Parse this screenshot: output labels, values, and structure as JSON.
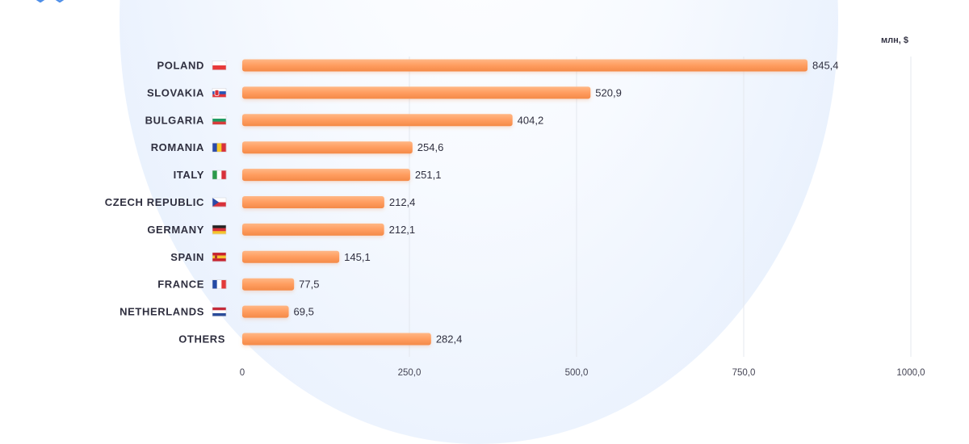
{
  "colors": {
    "bar": "#ff9a5c",
    "bar_highlight": "#ffb785",
    "grid": "#e4e8ef",
    "background_circle": "#e9f1fd",
    "logo": "#4f8fe8"
  },
  "icons": {
    "logo": "cube-logo-icon"
  },
  "chart_data": {
    "type": "bar",
    "orientation": "horizontal",
    "unit": "млн, $",
    "categories": [
      "POLAND",
      "SLOVAKIA",
      "BULGARIA",
      "ROMANIA",
      "ITALY",
      "CZECH REPUBLIC",
      "GERMANY",
      "SPAIN",
      "FRANCE",
      "NETHERLANDS",
      "OTHERS"
    ],
    "flags": [
      "PL",
      "SK",
      "BG",
      "RO",
      "IT",
      "CZ",
      "DE",
      "ES",
      "FR",
      "NL",
      ""
    ],
    "values": [
      845.4,
      520.9,
      404.2,
      254.6,
      251.1,
      212.4,
      212.1,
      145.1,
      77.5,
      69.5,
      282.4
    ],
    "value_labels": [
      "845,4",
      "520,9",
      "404,2",
      "254,6",
      "251,1",
      "212,4",
      "212,1",
      "145,1",
      "77,5",
      "69,5",
      "282,4"
    ],
    "x_ticks": [
      0,
      250,
      500,
      750,
      1000
    ],
    "x_tick_labels": [
      "0",
      "250,0",
      "500,0",
      "750,0",
      "1000,0"
    ],
    "xlim": [
      0,
      1000
    ],
    "grid": true,
    "legend": "none"
  }
}
